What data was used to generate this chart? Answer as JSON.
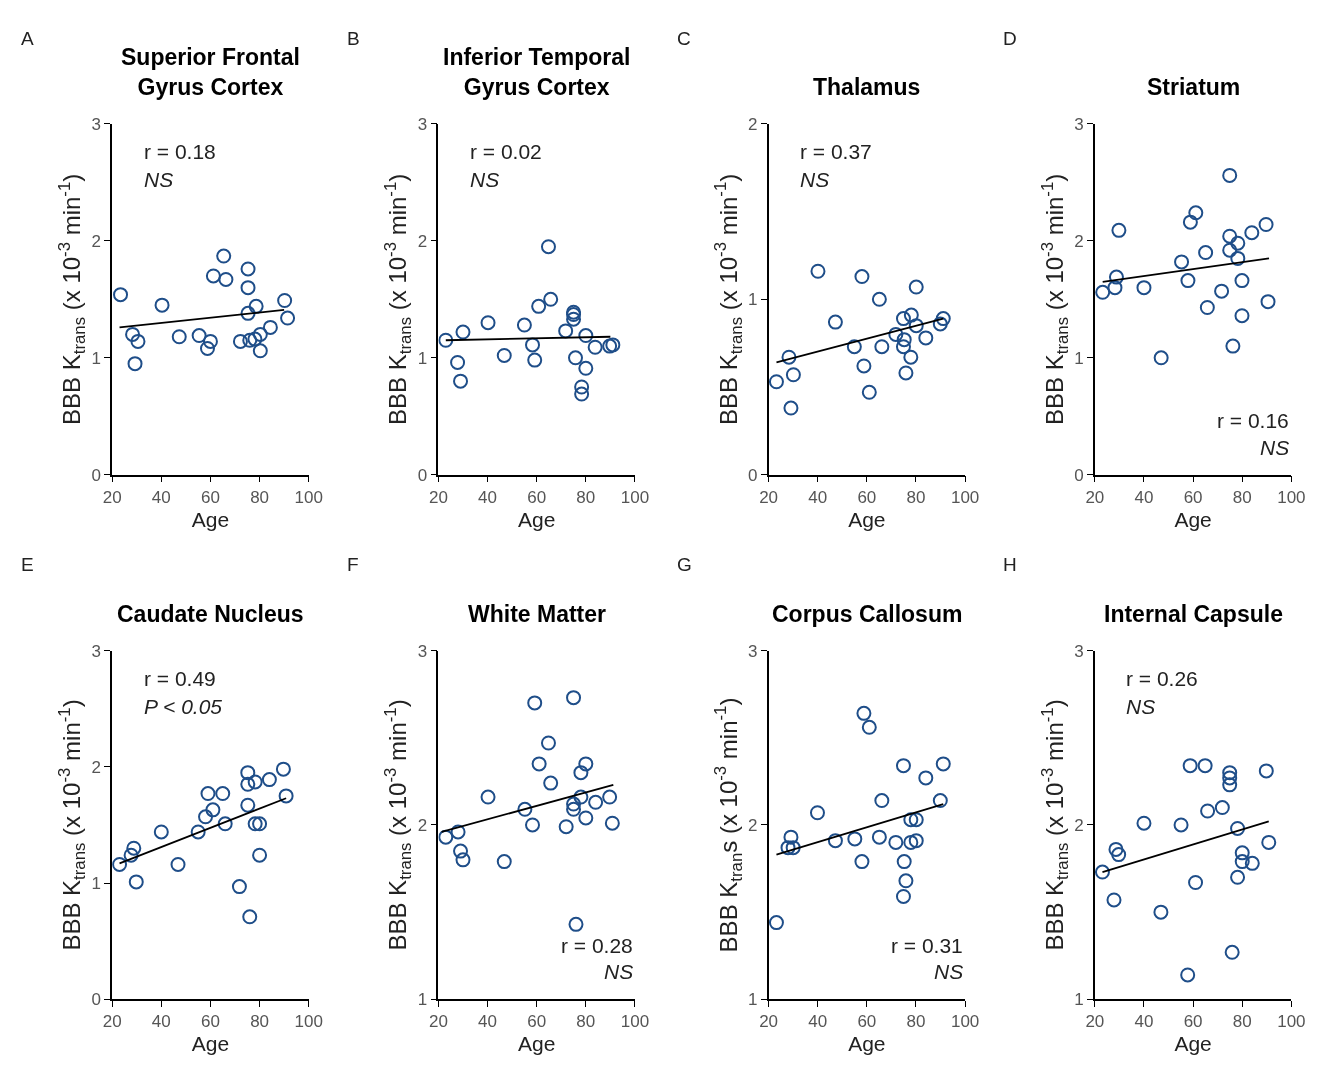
{
  "chart_data": [
    {
      "type": "scatter",
      "title": "Superior Frontal\nGyrus Cortex",
      "xlabel": "Age",
      "ylabel": "BBB K$_{trans}$ (x 10$^{-3}$ min$^{-1}$)",
      "xlim": [
        20,
        100
      ],
      "xticks": [
        20,
        40,
        60,
        80,
        100
      ],
      "ylim": [
        0,
        3
      ],
      "yticks": [
        0,
        1,
        2,
        3
      ],
      "marker": "circle",
      "annotations": [
        "A",
        "r = 0.18",
        "NS"
      ],
      "series": [
        {
          "color": "#1f4e89",
          "x": [
            23.4,
            28.3,
            30.5,
            29.3,
            40.3,
            47.3,
            55.4,
            58.8,
            60,
            61.2,
            65.4,
            66.3,
            72.2,
            75.3,
            75.3,
            75.3,
            76,
            78.1,
            78.6,
            80.3,
            80.3,
            84.4,
            90.2,
            91.4
          ],
          "values": [
            1.54,
            1.2,
            1.14,
            0.95,
            1.45,
            1.18,
            1.19,
            1.08,
            1.14,
            1.7,
            1.87,
            1.67,
            1.14,
            1.76,
            1.6,
            1.38,
            1.15,
            1.16,
            1.44,
            1.2,
            1.06,
            1.26,
            1.49,
            1.34
          ]
        },
        {
          "type": "line",
          "color": "#000000",
          "marker": "none",
          "x": [
            23,
            90
          ],
          "values": [
            1.26,
            1.41
          ]
        }
      ]
    },
    {
      "type": "scatter",
      "title": "Inferior Temporal\nGyrus Cortex",
      "xlabel": "Age",
      "ylabel": "BBB K$_{trans}$ (x 10$^{-3}$ min$^{-1}$)",
      "xlim": [
        20,
        100
      ],
      "xticks": [
        20,
        40,
        60,
        80,
        100
      ],
      "ylim": [
        0,
        3
      ],
      "yticks": [
        0,
        1,
        2,
        3
      ],
      "marker": "circle",
      "annotations": [
        "B",
        "r = 0.02",
        "NS"
      ],
      "series": [
        {
          "color": "#1f4e89",
          "x": [
            23,
            27.8,
            29,
            30,
            40.2,
            46.8,
            55,
            58.3,
            59.2,
            60.8,
            64.8,
            65.7,
            71.8,
            75,
            75,
            75,
            75.8,
            80,
            80,
            78.3,
            78.3,
            83.8,
            89.7,
            91
          ],
          "values": [
            1.15,
            0.96,
            0.8,
            1.22,
            1.3,
            1.02,
            1.28,
            1.11,
            0.98,
            1.44,
            1.95,
            1.5,
            1.23,
            1.39,
            1.37,
            1.33,
            1.0,
            1.19,
            0.91,
            0.75,
            0.69,
            1.09,
            1.1,
            1.11
          ]
        },
        {
          "type": "line",
          "color": "#000000",
          "marker": "none",
          "x": [
            23,
            90
          ],
          "values": [
            1.15,
            1.18
          ]
        }
      ]
    },
    {
      "type": "scatter",
      "title": "Thalamus",
      "xlabel": "Age",
      "ylabel": "BBB K$_{trans}$ (x 10$^{-3}$ min$^{-1}$)",
      "xlim": [
        20,
        100
      ],
      "xticks": [
        20,
        40,
        60,
        80,
        100
      ],
      "ylim": [
        0,
        2
      ],
      "yticks": [
        0,
        1,
        2
      ],
      "marker": "circle",
      "annotations": [
        "C",
        "r = 0.37",
        "NS"
      ],
      "series": [
        {
          "color": "#1f4e89",
          "x": [
            23.2,
            28.3,
            30.1,
            29.1,
            40.1,
            47.2,
            54.9,
            58,
            58.8,
            61,
            65.1,
            66.1,
            71.8,
            74.9,
            75.2,
            74.9,
            78.1,
            77.9,
            75.9,
            80.1,
            80.1,
            84,
            89.9,
            91.1
          ],
          "values": [
            0.53,
            0.67,
            0.57,
            0.38,
            1.16,
            0.87,
            0.73,
            1.13,
            0.62,
            0.47,
            1.0,
            0.73,
            0.8,
            0.89,
            0.77,
            0.73,
            0.91,
            0.67,
            0.58,
            1.07,
            0.85,
            0.78,
            0.86,
            0.89
          ]
        },
        {
          "type": "line",
          "color": "#000000",
          "marker": "none",
          "x": [
            23.2,
            91.1
          ],
          "values": [
            0.64,
            0.89
          ]
        }
      ]
    },
    {
      "type": "scatter",
      "title": "Striatum",
      "xlabel": "Age",
      "ylabel": "BBB K$_{trans}$ (x 10$^{-3}$ min$^{-1}$)",
      "xlim": [
        20,
        100
      ],
      "xticks": [
        20,
        40,
        60,
        80,
        100
      ],
      "ylim": [
        0,
        3
      ],
      "yticks": [
        0,
        1,
        2,
        3
      ],
      "marker": "circle",
      "annotations": [
        "D",
        "r = 0.16",
        "NS"
      ],
      "series": [
        {
          "color": "#1f4e89",
          "x": [
            23.2,
            28.2,
            28.8,
            29.8,
            40,
            47,
            55.3,
            57.9,
            58.9,
            61.1,
            65.1,
            65.8,
            71.6,
            74.9,
            74.9,
            74.9,
            76.2,
            78.2,
            78.2,
            79.9,
            79.9,
            83.9,
            89.7,
            90.5
          ],
          "values": [
            1.56,
            1.6,
            1.69,
            2.09,
            1.6,
            1.0,
            1.82,
            1.66,
            2.16,
            2.24,
            1.9,
            1.43,
            1.57,
            2.56,
            2.04,
            1.92,
            1.1,
            1.98,
            1.85,
            1.66,
            1.36,
            2.07,
            2.14,
            1.48
          ]
        },
        {
          "type": "line",
          "color": "#000000",
          "marker": "none",
          "x": [
            23.2,
            90.9
          ],
          "values": [
            1.65,
            1.85
          ]
        }
      ]
    },
    {
      "type": "scatter",
      "title": "Caudate Nucleus",
      "xlabel": "Age",
      "ylabel": "BBB K$_{trans}$ (x 10$^{-3}$ min$^{-1}$)",
      "xlim": [
        20,
        100
      ],
      "xticks": [
        20,
        40,
        60,
        80,
        100
      ],
      "ylim": [
        0,
        3
      ],
      "yticks": [
        0,
        1,
        2,
        3
      ],
      "marker": "circle",
      "annotations": [
        "E",
        "r = 0.49",
        "P < 0.05"
      ],
      "series": [
        {
          "color": "#1f4e89",
          "x": [
            23,
            27.7,
            28.8,
            29.8,
            40,
            46.8,
            55,
            58,
            59,
            61,
            65,
            66,
            71.8,
            75.2,
            75.2,
            75.2,
            76,
            78.2,
            78.2,
            80,
            80,
            84,
            89.7,
            90.8
          ],
          "values": [
            1.16,
            1.24,
            1.3,
            1.01,
            1.44,
            1.16,
            1.44,
            1.57,
            1.77,
            1.63,
            1.77,
            1.51,
            0.97,
            1.95,
            1.85,
            1.67,
            0.71,
            1.87,
            1.51,
            1.51,
            1.24,
            1.89,
            1.98,
            1.75
          ]
        },
        {
          "type": "line",
          "color": "#000000",
          "marker": "none",
          "x": [
            23,
            90.8
          ],
          "values": [
            1.17,
            1.73
          ]
        }
      ]
    },
    {
      "type": "scatter",
      "title": "White Matter",
      "xlabel": "Age",
      "ylabel": "BBB K$_{trans}$ (x 10$^{-3}$ min$^{-1}$)",
      "xlim": [
        20,
        100
      ],
      "xticks": [
        20,
        40,
        60,
        80,
        100
      ],
      "ylim": [
        1,
        3
      ],
      "yticks": [
        1,
        2,
        3
      ],
      "marker": "circle",
      "annotations": [
        "F",
        "r = 0.28",
        "NS"
      ],
      "series": [
        {
          "color": "#1f4e89",
          "x": [
            23,
            28,
            29,
            30,
            40.2,
            46.8,
            55.2,
            58.3,
            59.2,
            61,
            64.8,
            65.7,
            72,
            75,
            75,
            75,
            76,
            78,
            80,
            78,
            80,
            84,
            89.7,
            90.8
          ],
          "values": [
            1.93,
            1.96,
            1.85,
            1.8,
            2.16,
            1.79,
            2.09,
            2.0,
            2.7,
            2.35,
            2.47,
            2.24,
            1.99,
            2.73,
            2.12,
            2.09,
            1.43,
            2.3,
            2.35,
            2.16,
            2.04,
            2.13,
            2.16,
            2.01
          ]
        },
        {
          "type": "line",
          "color": "#000000",
          "marker": "none",
          "x": [
            21.3,
            91.2
          ],
          "values": [
            1.96,
            2.23
          ]
        }
      ]
    },
    {
      "type": "scatter",
      "title": "Corpus Callosum",
      "xlabel": "Age",
      "ylabel": "BBB K$_{tran}$s (x 10$^{-3}$ min$^{-1}$)",
      "xlim": [
        20,
        100
      ],
      "xticks": [
        20,
        40,
        60,
        80,
        100
      ],
      "ylim": [
        1,
        3
      ],
      "yticks": [
        1,
        2,
        3
      ],
      "marker": "circle",
      "annotations": [
        "G",
        "r = 0.31",
        "NS"
      ],
      "series": [
        {
          "color": "#1f4e89",
          "x": [
            23.2,
            27.9,
            30,
            29.1,
            39.9,
            47.2,
            55.1,
            58,
            58.8,
            61,
            65.1,
            66.1,
            71.8,
            74.9,
            75.2,
            75.9,
            74.9,
            77.9,
            80.1,
            77.9,
            80.1,
            84,
            89.9,
            91.1
          ],
          "values": [
            1.44,
            1.87,
            1.87,
            1.93,
            2.07,
            1.91,
            1.92,
            1.79,
            2.64,
            2.56,
            1.93,
            2.14,
            1.9,
            2.34,
            1.79,
            1.68,
            1.59,
            2.03,
            2.03,
            1.9,
            1.91,
            2.27,
            2.14,
            2.35
          ]
        },
        {
          "type": "line",
          "color": "#000000",
          "marker": "none",
          "x": [
            23.2,
            91.1
          ],
          "values": [
            1.83,
            2.12
          ]
        }
      ]
    },
    {
      "type": "scatter",
      "title": "Internal Capsule",
      "xlabel": "Age",
      "ylabel": "BBB K$_{trans}$ (x 10$^{-3}$ min$^{-1}$)",
      "xlim": [
        20,
        100
      ],
      "xticks": [
        20,
        40,
        60,
        80,
        100
      ],
      "ylim": [
        1,
        3
      ],
      "yticks": [
        1,
        2,
        3
      ],
      "marker": "circle",
      "annotations": [
        "H",
        "r = 0.26",
        "NS"
      ],
      "series": [
        {
          "color": "#1f4e89",
          "x": [
            23.1,
            27.8,
            28.6,
            29.7,
            40,
            46.9,
            55.1,
            58.8,
            57.8,
            61,
            64.9,
            65.9,
            71.9,
            74.9,
            74.9,
            74.9,
            75.9,
            78.1,
            78.1,
            80,
            80,
            84.1,
            89.8,
            90.8
          ],
          "values": [
            1.73,
            1.57,
            1.86,
            1.83,
            2.01,
            1.5,
            2.0,
            2.34,
            1.14,
            1.67,
            2.34,
            2.08,
            2.1,
            2.3,
            2.27,
            2.23,
            1.27,
            1.98,
            1.7,
            1.84,
            1.79,
            1.78,
            2.31,
            1.9
          ]
        },
        {
          "type": "line",
          "color": "#000000",
          "marker": "none",
          "x": [
            23.1,
            90.8
          ],
          "values": [
            1.73,
            2.02
          ]
        }
      ]
    }
  ]
}
